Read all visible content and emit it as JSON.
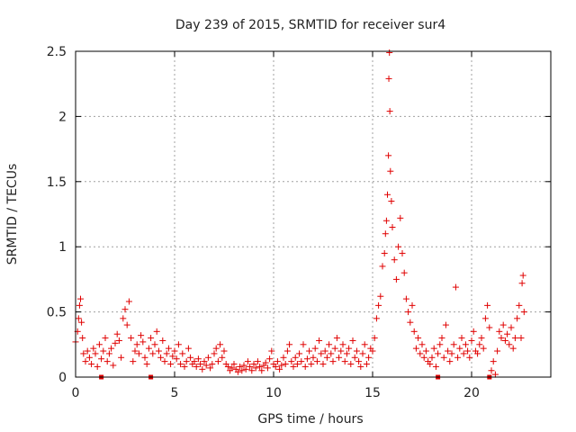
{
  "chart_data": {
    "type": "scatter",
    "title": "Day 239 of 2015, SRMTID for receiver sur4",
    "xlabel": "GPS time / hours",
    "ylabel": "SRMTID / TECUs",
    "xlim": [
      0,
      24
    ],
    "ylim": [
      0,
      2.5
    ],
    "xticks": [
      0,
      5,
      10,
      15,
      20
    ],
    "yticks": [
      0,
      0.5,
      1,
      1.5,
      2,
      2.5
    ],
    "xtick_labels": [
      "0",
      "5",
      "10",
      "15",
      "20"
    ],
    "ytick_labels": [
      "0",
      "0.5",
      "1",
      "1.5",
      "2",
      "2.5"
    ],
    "grid": true,
    "marker": "+",
    "color": "#e00000",
    "series": [
      {
        "name": "sur4",
        "points": [
          [
            0.0,
            0.27
          ],
          [
            0.1,
            0.35
          ],
          [
            0.15,
            0.45
          ],
          [
            0.2,
            0.55
          ],
          [
            0.25,
            0.6
          ],
          [
            0.3,
            0.42
          ],
          [
            0.35,
            0.3
          ],
          [
            0.4,
            0.18
          ],
          [
            0.5,
            0.12
          ],
          [
            0.6,
            0.2
          ],
          [
            0.7,
            0.15
          ],
          [
            0.8,
            0.1
          ],
          [
            0.9,
            0.22
          ],
          [
            1.0,
            0.18
          ],
          [
            1.1,
            0.08
          ],
          [
            1.2,
            0.25
          ],
          [
            1.3,
            0.14
          ],
          [
            1.4,
            0.2
          ],
          [
            1.5,
            0.3
          ],
          [
            1.6,
            0.12
          ],
          [
            1.7,
            0.18
          ],
          [
            1.8,
            0.22
          ],
          [
            1.9,
            0.09
          ],
          [
            2.0,
            0.26
          ],
          [
            2.1,
            0.33
          ],
          [
            2.2,
            0.28
          ],
          [
            2.3,
            0.15
          ],
          [
            2.4,
            0.45
          ],
          [
            2.5,
            0.52
          ],
          [
            2.6,
            0.4
          ],
          [
            2.7,
            0.58
          ],
          [
            2.8,
            0.3
          ],
          [
            2.9,
            0.12
          ],
          [
            3.0,
            0.2
          ],
          [
            3.1,
            0.25
          ],
          [
            3.2,
            0.18
          ],
          [
            3.3,
            0.32
          ],
          [
            3.4,
            0.27
          ],
          [
            3.5,
            0.15
          ],
          [
            3.6,
            0.1
          ],
          [
            3.7,
            0.22
          ],
          [
            3.8,
            0.3
          ],
          [
            3.9,
            0.18
          ],
          [
            4.0,
            0.25
          ],
          [
            4.1,
            0.35
          ],
          [
            4.2,
            0.2
          ],
          [
            4.3,
            0.15
          ],
          [
            4.4,
            0.28
          ],
          [
            4.5,
            0.12
          ],
          [
            4.6,
            0.18
          ],
          [
            4.7,
            0.22
          ],
          [
            4.8,
            0.1
          ],
          [
            4.9,
            0.16
          ],
          [
            5.0,
            0.2
          ],
          [
            5.1,
            0.14
          ],
          [
            5.2,
            0.25
          ],
          [
            5.3,
            0.1
          ],
          [
            5.4,
            0.18
          ],
          [
            5.5,
            0.08
          ],
          [
            5.6,
            0.12
          ],
          [
            5.7,
            0.22
          ],
          [
            5.8,
            0.15
          ],
          [
            5.9,
            0.1
          ],
          [
            6.0,
            0.12
          ],
          [
            6.1,
            0.08
          ],
          [
            6.2,
            0.14
          ],
          [
            6.3,
            0.1
          ],
          [
            6.4,
            0.06
          ],
          [
            6.5,
            0.12
          ],
          [
            6.6,
            0.09
          ],
          [
            6.7,
            0.15
          ],
          [
            6.8,
            0.07
          ],
          [
            6.9,
            0.1
          ],
          [
            7.0,
            0.18
          ],
          [
            7.1,
            0.22
          ],
          [
            7.2,
            0.12
          ],
          [
            7.3,
            0.25
          ],
          [
            7.4,
            0.15
          ],
          [
            7.5,
            0.2
          ],
          [
            7.6,
            0.1
          ],
          [
            7.7,
            0.08
          ],
          [
            7.8,
            0.05
          ],
          [
            7.9,
            0.07
          ],
          [
            8.0,
            0.1
          ],
          [
            8.1,
            0.06
          ],
          [
            8.2,
            0.04
          ],
          [
            8.3,
            0.08
          ],
          [
            8.4,
            0.05
          ],
          [
            8.5,
            0.09
          ],
          [
            8.6,
            0.06
          ],
          [
            8.7,
            0.12
          ],
          [
            8.8,
            0.08
          ],
          [
            8.9,
            0.05
          ],
          [
            9.0,
            0.1
          ],
          [
            9.1,
            0.07
          ],
          [
            9.2,
            0.12
          ],
          [
            9.3,
            0.08
          ],
          [
            9.4,
            0.05
          ],
          [
            9.5,
            0.09
          ],
          [
            9.6,
            0.11
          ],
          [
            9.7,
            0.07
          ],
          [
            9.8,
            0.14
          ],
          [
            9.9,
            0.2
          ],
          [
            10.0,
            0.1
          ],
          [
            10.1,
            0.08
          ],
          [
            10.2,
            0.12
          ],
          [
            10.3,
            0.06
          ],
          [
            10.4,
            0.09
          ],
          [
            10.5,
            0.15
          ],
          [
            10.6,
            0.1
          ],
          [
            10.7,
            0.2
          ],
          [
            10.8,
            0.25
          ],
          [
            10.9,
            0.12
          ],
          [
            11.0,
            0.08
          ],
          [
            11.1,
            0.15
          ],
          [
            11.2,
            0.1
          ],
          [
            11.3,
            0.18
          ],
          [
            11.4,
            0.12
          ],
          [
            11.5,
            0.25
          ],
          [
            11.6,
            0.08
          ],
          [
            11.7,
            0.14
          ],
          [
            11.8,
            0.2
          ],
          [
            11.9,
            0.1
          ],
          [
            12.0,
            0.15
          ],
          [
            12.1,
            0.22
          ],
          [
            12.2,
            0.12
          ],
          [
            12.3,
            0.28
          ],
          [
            12.4,
            0.18
          ],
          [
            12.5,
            0.1
          ],
          [
            12.6,
            0.2
          ],
          [
            12.7,
            0.15
          ],
          [
            12.8,
            0.25
          ],
          [
            12.9,
            0.18
          ],
          [
            13.0,
            0.12
          ],
          [
            13.1,
            0.22
          ],
          [
            13.2,
            0.3
          ],
          [
            13.3,
            0.15
          ],
          [
            13.4,
            0.2
          ],
          [
            13.5,
            0.25
          ],
          [
            13.6,
            0.12
          ],
          [
            13.7,
            0.18
          ],
          [
            13.8,
            0.22
          ],
          [
            13.9,
            0.1
          ],
          [
            14.0,
            0.28
          ],
          [
            14.1,
            0.15
          ],
          [
            14.2,
            0.2
          ],
          [
            14.3,
            0.12
          ],
          [
            14.4,
            0.08
          ],
          [
            14.5,
            0.18
          ],
          [
            14.6,
            0.25
          ],
          [
            14.7,
            0.1
          ],
          [
            14.8,
            0.15
          ],
          [
            14.9,
            0.22
          ],
          [
            15.0,
            0.2
          ],
          [
            15.1,
            0.3
          ],
          [
            15.2,
            0.45
          ],
          [
            15.3,
            0.55
          ],
          [
            15.4,
            0.62
          ],
          [
            15.5,
            0.85
          ],
          [
            15.6,
            0.95
          ],
          [
            15.65,
            1.1
          ],
          [
            15.7,
            1.2
          ],
          [
            15.75,
            1.4
          ],
          [
            15.8,
            1.7
          ],
          [
            15.82,
            2.29
          ],
          [
            15.85,
            2.49
          ],
          [
            15.87,
            2.04
          ],
          [
            15.9,
            1.58
          ],
          [
            15.95,
            1.35
          ],
          [
            16.0,
            1.15
          ],
          [
            16.1,
            0.9
          ],
          [
            16.2,
            0.75
          ],
          [
            16.3,
            1.0
          ],
          [
            16.4,
            1.22
          ],
          [
            16.5,
            0.95
          ],
          [
            16.6,
            0.8
          ],
          [
            16.7,
            0.6
          ],
          [
            16.8,
            0.5
          ],
          [
            16.9,
            0.42
          ],
          [
            17.0,
            0.55
          ],
          [
            17.1,
            0.35
          ],
          [
            17.2,
            0.22
          ],
          [
            17.3,
            0.3
          ],
          [
            17.4,
            0.18
          ],
          [
            17.5,
            0.25
          ],
          [
            17.6,
            0.15
          ],
          [
            17.7,
            0.2
          ],
          [
            17.8,
            0.12
          ],
          [
            17.9,
            0.1
          ],
          [
            18.0,
            0.15
          ],
          [
            18.1,
            0.22
          ],
          [
            18.2,
            0.08
          ],
          [
            18.3,
            0.18
          ],
          [
            18.4,
            0.25
          ],
          [
            18.5,
            0.3
          ],
          [
            18.6,
            0.15
          ],
          [
            18.7,
            0.4
          ],
          [
            18.8,
            0.2
          ],
          [
            18.9,
            0.12
          ],
          [
            19.0,
            0.18
          ],
          [
            19.1,
            0.25
          ],
          [
            19.2,
            0.69
          ],
          [
            19.3,
            0.15
          ],
          [
            19.4,
            0.22
          ],
          [
            19.5,
            0.3
          ],
          [
            19.6,
            0.18
          ],
          [
            19.7,
            0.25
          ],
          [
            19.8,
            0.2
          ],
          [
            19.9,
            0.15
          ],
          [
            20.0,
            0.28
          ],
          [
            20.1,
            0.35
          ],
          [
            20.2,
            0.2
          ],
          [
            20.3,
            0.18
          ],
          [
            20.4,
            0.25
          ],
          [
            20.5,
            0.3
          ],
          [
            20.6,
            0.22
          ],
          [
            20.7,
            0.45
          ],
          [
            20.8,
            0.55
          ],
          [
            20.9,
            0.38
          ],
          [
            21.0,
            0.05
          ],
          [
            21.1,
            0.12
          ],
          [
            21.2,
            0.02
          ],
          [
            21.3,
            0.2
          ],
          [
            21.4,
            0.35
          ],
          [
            21.5,
            0.3
          ],
          [
            21.6,
            0.4
          ],
          [
            21.7,
            0.28
          ],
          [
            21.8,
            0.33
          ],
          [
            21.9,
            0.25
          ],
          [
            22.0,
            0.38
          ],
          [
            22.1,
            0.22
          ],
          [
            22.2,
            0.3
          ],
          [
            22.3,
            0.45
          ],
          [
            22.4,
            0.55
          ],
          [
            22.5,
            0.3
          ],
          [
            22.55,
            0.72
          ],
          [
            22.6,
            0.78
          ],
          [
            22.65,
            0.5
          ]
        ]
      }
    ],
    "axis_markers_x": [
      1.3,
      3.8,
      18.3,
      20.9
    ]
  }
}
